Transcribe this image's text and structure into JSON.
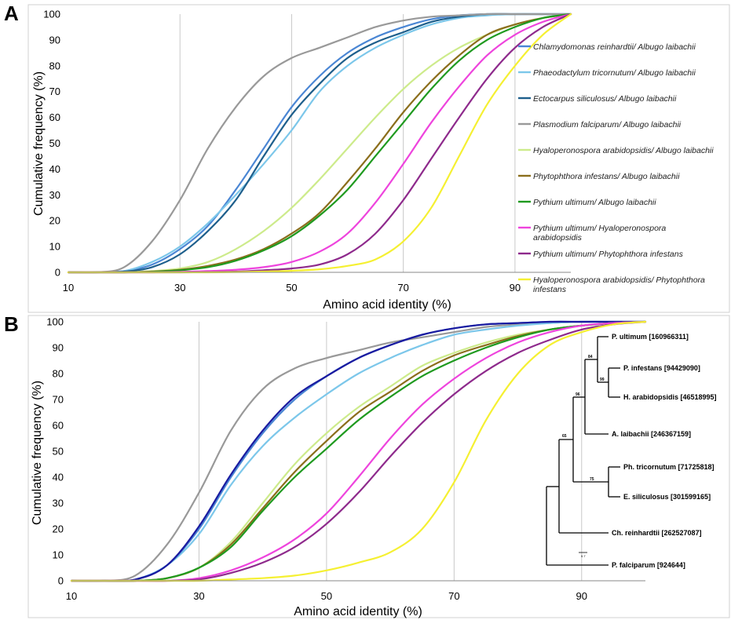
{
  "panels": [
    {
      "label": "A"
    },
    {
      "label": "B"
    }
  ],
  "chart_data": [
    {
      "type": "line",
      "panel": "A",
      "xlabel": "Amino acid identity (%)",
      "ylabel": "Cumulative frequency (%)",
      "xlim": [
        10,
        100
      ],
      "ylim": [
        0,
        100
      ],
      "xticks": [
        10,
        30,
        50,
        70,
        90
      ],
      "yticks": [
        0,
        10,
        20,
        30,
        40,
        50,
        60,
        70,
        80,
        90,
        100
      ],
      "grid": "vertical",
      "legend_position": "right",
      "x": [
        10,
        15,
        20,
        25,
        30,
        35,
        40,
        45,
        50,
        55,
        60,
        65,
        70,
        75,
        80,
        85,
        90,
        95,
        100
      ],
      "series": [
        {
          "name": "Chlamydomonas reinhardtii/ Albugo laibachii",
          "color": "#4a86d4",
          "values": [
            0,
            0,
            0.5,
            3,
            9,
            18,
            32,
            48,
            64,
            76,
            85,
            91,
            95,
            98,
            99.5,
            100,
            100,
            100,
            100
          ]
        },
        {
          "name": "Phaeodactylum tricornutum/ Albugo laibachii",
          "color": "#7cc7ea",
          "values": [
            0,
            0,
            0.5,
            4,
            10,
            19,
            30,
            42,
            55,
            70,
            80,
            87,
            92,
            96,
            98.5,
            99.5,
            100,
            100,
            100
          ]
        },
        {
          "name": "Ectocarpus siliculosus/ Albugo laibachii",
          "color": "#1e5f8c",
          "values": [
            0,
            0,
            0.3,
            2,
            7,
            16,
            28,
            45,
            61,
            73,
            83,
            89,
            93,
            97,
            99,
            100,
            100,
            100,
            100
          ]
        },
        {
          "name": "Plasmodium falciparum/ Albugo laibachii",
          "color": "#999999",
          "values": [
            0,
            0,
            2,
            12,
            28,
            48,
            64,
            76,
            83,
            87,
            91,
            95,
            97.5,
            99,
            99.5,
            100,
            100,
            100,
            100
          ]
        },
        {
          "name": "Hyaloperonospora arabidopsidis/ Albugo laibachii",
          "color": "#cdeb8b",
          "values": [
            0,
            0,
            0,
            0.5,
            1.5,
            4,
            9,
            16,
            25,
            36,
            48,
            60,
            71,
            80,
            87,
            92,
            96,
            98.5,
            100
          ]
        },
        {
          "name": "Phytophthora infestans/ Albugo laibachii",
          "color": "#8b6e1c",
          "values": [
            0,
            0,
            0,
            0.3,
            1,
            2.5,
            5,
            9,
            15,
            23,
            35,
            48,
            62,
            74,
            84,
            92,
            96,
            98.5,
            100
          ]
        },
        {
          "name": "Pythium ultimum/ Albugo laibachii",
          "color": "#1f9a1f",
          "values": [
            0,
            0,
            0,
            0.2,
            0.8,
            2,
            4.5,
            8.5,
            14,
            22,
            32,
            45,
            58,
            71,
            82,
            90,
            95,
            98.5,
            100
          ]
        },
        {
          "name": "Pythium ultimum/ Hyaloperonospora arabidopsidis",
          "color": "#ee44dd",
          "values": [
            0,
            0,
            0,
            0,
            0.2,
            0.5,
            1,
            2,
            4,
            8,
            15,
            27,
            42,
            58,
            72,
            84,
            92,
            97,
            100
          ]
        },
        {
          "name": "Pythium ultimum/ Phytophthora infestans",
          "color": "#8e2a8c",
          "values": [
            0,
            0,
            0,
            0,
            0,
            0.1,
            0.3,
            0.8,
            1.5,
            3,
            7,
            15,
            28,
            44,
            60,
            75,
            87,
            95,
            100
          ]
        },
        {
          "name": "Hyaloperonospora arabidopsidis/ Phytophthora infestans",
          "color": "#f5f032",
          "values": [
            0,
            0,
            0,
            0,
            0,
            0,
            0.1,
            0.3,
            0.6,
            1.2,
            2.5,
            5,
            12,
            25,
            45,
            65,
            80,
            92,
            100
          ]
        }
      ],
      "legend": {
        "entries": [
          {
            "line1": "Chlamydomonas reinhardtii/ Albugo laibachii",
            "line2": ""
          },
          {
            "line1": "Phaeodactylum tricornutum/ Albugo laibachii",
            "line2": ""
          },
          {
            "line1": "Ectocarpus siliculosus/ Albugo laibachii",
            "line2": ""
          },
          {
            "line1": "Plasmodium falciparum/ Albugo laibachii",
            "line2": ""
          },
          {
            "line1": "Hyaloperonospora arabidopsidis/ Albugo laibachii",
            "line2": ""
          },
          {
            "line1": "Phytophthora infestans/ Albugo laibachii",
            "line2": ""
          },
          {
            "line1": "Pythium ultimum/ Albugo laibachii",
            "line2": ""
          },
          {
            "line1": "Pythium ultimum/ Hyaloperonospora",
            "line2": "arabidopsidis"
          },
          {
            "line1": "Pythium ultimum/ Phytophthora infestans",
            "line2": ""
          },
          {
            "line1": "Hyaloperonospora arabidopsidis/ Phytophthora",
            "line2": "infestans"
          }
        ]
      }
    },
    {
      "type": "line",
      "panel": "B",
      "xlabel": "Amino acid identity (%)",
      "ylabel": "Cumulative frequency (%)",
      "xlim": [
        10,
        100
      ],
      "ylim": [
        0,
        100
      ],
      "xticks": [
        10,
        30,
        50,
        70,
        90
      ],
      "yticks": [
        0,
        10,
        20,
        30,
        40,
        50,
        60,
        70,
        80,
        90,
        100
      ],
      "grid": "vertical",
      "x": [
        10,
        15,
        20,
        25,
        30,
        35,
        40,
        45,
        50,
        55,
        60,
        65,
        70,
        75,
        80,
        85,
        90,
        95,
        100
      ],
      "series": [
        {
          "color": "#999999",
          "values": [
            0,
            0,
            2,
            14,
            34,
            58,
            74,
            82,
            86,
            89,
            92,
            94,
            96,
            98,
            99,
            99.5,
            100,
            100,
            100
          ]
        },
        {
          "color": "#7cc7ea",
          "values": [
            0,
            0,
            0.5,
            6,
            18,
            37,
            52,
            63,
            72,
            80,
            86,
            91,
            95,
            97,
            98.5,
            99.5,
            100,
            100,
            100
          ]
        },
        {
          "color": "#4a86d4",
          "values": [
            0,
            0,
            0.5,
            6,
            20,
            40,
            57,
            70,
            79,
            86,
            91,
            95,
            97.5,
            99,
            99.5,
            100,
            100,
            100,
            100
          ]
        },
        {
          "color": "#1a1aa0",
          "values": [
            0,
            0,
            0.5,
            6,
            21,
            41,
            58,
            71,
            79,
            86,
            91,
            95,
            97.5,
            99,
            99.5,
            100,
            100,
            100,
            100
          ]
        },
        {
          "color": "#cdeb8b",
          "values": [
            0,
            0,
            0,
            1,
            5,
            15,
            30,
            45,
            57,
            67,
            75,
            83,
            88,
            92,
            95,
            97,
            98.5,
            99.5,
            100
          ]
        },
        {
          "color": "#8b6e1c",
          "values": [
            0,
            0,
            0,
            1,
            5,
            14,
            28,
            42,
            54,
            65,
            73,
            81,
            87,
            91,
            94.5,
            97,
            98.5,
            99.5,
            100
          ]
        },
        {
          "color": "#1f9a1f",
          "values": [
            0,
            0,
            0,
            1,
            5,
            13,
            27,
            40,
            51,
            62,
            71,
            79,
            85,
            90,
            94,
            97,
            98.5,
            99.5,
            100
          ]
        },
        {
          "color": "#ee44dd",
          "values": [
            0,
            0,
            0,
            0,
            1,
            4,
            9,
            16,
            26,
            40,
            55,
            68,
            78,
            86,
            92,
            96,
            98.5,
            99.5,
            100
          ]
        },
        {
          "color": "#8e2a8c",
          "values": [
            0,
            0,
            0,
            0,
            0.5,
            3,
            7,
            13,
            22,
            34,
            48,
            61,
            72,
            81,
            88,
            93,
            97,
            99,
            100
          ]
        },
        {
          "color": "#f5f032",
          "values": [
            0,
            0,
            0,
            0,
            0,
            0.5,
            1,
            2,
            4,
            7,
            11,
            20,
            38,
            62,
            80,
            91,
            96,
            99,
            100
          ]
        }
      ]
    }
  ],
  "tree": {
    "taxa": [
      "P. ultimum [160966311]",
      "P. infestans [94429090]",
      "H. arabidopsidis [46518995]",
      "A. laibachii [246367159]",
      "Ph. tricornutum [71725818]",
      "E. siliculosus [301599165]",
      "Ch. reinhardtii [262527087]",
      "P. falciparum [924644]"
    ],
    "bootstraps": [
      "84",
      "99",
      "96",
      "65",
      "75"
    ],
    "scale": "0.7"
  }
}
